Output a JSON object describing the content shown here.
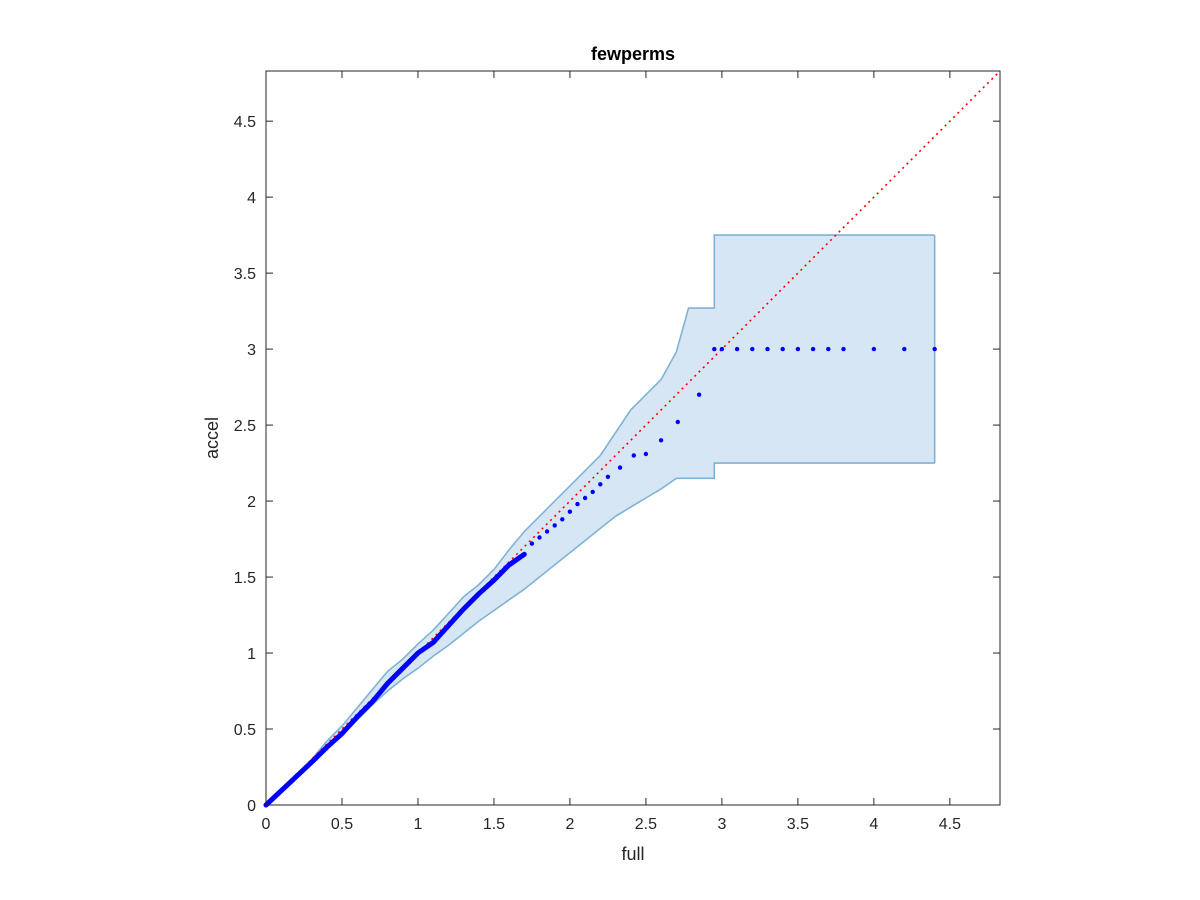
{
  "chart_data": {
    "type": "scatter",
    "title": "fewperms",
    "xlabel": "full",
    "ylabel": "accel",
    "xlim": [
      0,
      4.83
    ],
    "ylim": [
      0,
      4.83
    ],
    "xticks": [
      "0",
      "0.5",
      "1",
      "1.5",
      "2",
      "2.5",
      "3",
      "3.5",
      "4",
      "4.5"
    ],
    "yticks": [
      "0",
      "0.5",
      "1",
      "1.5",
      "2",
      "2.5",
      "3",
      "3.5",
      "4",
      "4.5"
    ],
    "grid": false,
    "legend": "none",
    "colors": {
      "points": "#0000ff",
      "band_fill": "#d6e6f4",
      "band_edge": "#7fb3d5",
      "diagonal": "#ff0000",
      "axes": "#262626"
    },
    "diagonal": {
      "from": [
        0,
        0
      ],
      "to": [
        4.83,
        4.83
      ],
      "style": "dotted"
    },
    "band_upper": [
      [
        0,
        0
      ],
      [
        0.3,
        0.3
      ],
      [
        0.4,
        0.42
      ],
      [
        0.5,
        0.52
      ],
      [
        0.6,
        0.64
      ],
      [
        0.7,
        0.76
      ],
      [
        0.8,
        0.88
      ],
      [
        0.9,
        0.96
      ],
      [
        1.0,
        1.06
      ],
      [
        1.1,
        1.15
      ],
      [
        1.2,
        1.26
      ],
      [
        1.3,
        1.37
      ],
      [
        1.4,
        1.45
      ],
      [
        1.5,
        1.55
      ],
      [
        1.6,
        1.68
      ],
      [
        1.7,
        1.8
      ],
      [
        1.8,
        1.9
      ],
      [
        1.9,
        2.0
      ],
      [
        2.0,
        2.1
      ],
      [
        2.1,
        2.2
      ],
      [
        2.2,
        2.3
      ],
      [
        2.3,
        2.45
      ],
      [
        2.4,
        2.6
      ],
      [
        2.5,
        2.7
      ],
      [
        2.6,
        2.8
      ],
      [
        2.7,
        2.98
      ],
      [
        2.78,
        3.27
      ],
      [
        2.95,
        3.27
      ],
      [
        2.95,
        3.75
      ],
      [
        4.4,
        3.75
      ]
    ],
    "band_lower": [
      [
        0,
        0
      ],
      [
        0.3,
        0.27
      ],
      [
        0.4,
        0.37
      ],
      [
        0.5,
        0.46
      ],
      [
        0.6,
        0.56
      ],
      [
        0.7,
        0.66
      ],
      [
        0.8,
        0.75
      ],
      [
        0.9,
        0.83
      ],
      [
        1.0,
        0.9
      ],
      [
        1.1,
        0.98
      ],
      [
        1.2,
        1.05
      ],
      [
        1.3,
        1.13
      ],
      [
        1.4,
        1.21
      ],
      [
        1.5,
        1.28
      ],
      [
        1.6,
        1.35
      ],
      [
        1.7,
        1.42
      ],
      [
        1.8,
        1.5
      ],
      [
        1.9,
        1.58
      ],
      [
        2.0,
        1.66
      ],
      [
        2.1,
        1.74
      ],
      [
        2.2,
        1.82
      ],
      [
        2.3,
        1.9
      ],
      [
        2.4,
        1.96
      ],
      [
        2.5,
        2.02
      ],
      [
        2.6,
        2.08
      ],
      [
        2.7,
        2.15
      ],
      [
        2.95,
        2.15
      ],
      [
        2.95,
        2.25
      ],
      [
        4.4,
        2.25
      ]
    ],
    "points_curve": [
      [
        0,
        0
      ],
      [
        0.32,
        0.3
      ],
      [
        0.4,
        0.38
      ],
      [
        0.5,
        0.47
      ],
      [
        0.6,
        0.58
      ],
      [
        0.7,
        0.68
      ],
      [
        0.8,
        0.8
      ],
      [
        0.9,
        0.9
      ],
      [
        1.0,
        1.0
      ],
      [
        1.1,
        1.07
      ],
      [
        1.2,
        1.18
      ],
      [
        1.3,
        1.29
      ],
      [
        1.4,
        1.39
      ],
      [
        1.5,
        1.48
      ],
      [
        1.6,
        1.58
      ],
      [
        1.7,
        1.65
      ]
    ],
    "points_steps": [
      [
        1.75,
        1.72
      ],
      [
        1.8,
        1.76
      ],
      [
        1.85,
        1.8
      ],
      [
        1.9,
        1.84
      ],
      [
        1.95,
        1.88
      ],
      [
        2.0,
        1.93
      ],
      [
        2.05,
        1.98
      ],
      [
        2.1,
        2.02
      ],
      [
        2.15,
        2.06
      ],
      [
        2.2,
        2.11
      ],
      [
        2.25,
        2.16
      ],
      [
        2.33,
        2.22
      ],
      [
        2.42,
        2.3
      ],
      [
        2.5,
        2.31
      ],
      [
        2.6,
        2.4
      ],
      [
        2.71,
        2.52
      ],
      [
        2.85,
        2.7
      ],
      [
        2.95,
        3.0
      ],
      [
        3.0,
        3.0
      ],
      [
        3.1,
        3.0
      ],
      [
        3.2,
        3.0
      ],
      [
        3.3,
        3.0
      ],
      [
        3.4,
        3.0
      ],
      [
        3.5,
        3.0
      ],
      [
        3.6,
        3.0
      ],
      [
        3.7,
        3.0
      ],
      [
        3.8,
        3.0
      ],
      [
        4.0,
        3.0
      ],
      [
        4.2,
        3.0
      ],
      [
        4.4,
        3.0
      ]
    ]
  }
}
